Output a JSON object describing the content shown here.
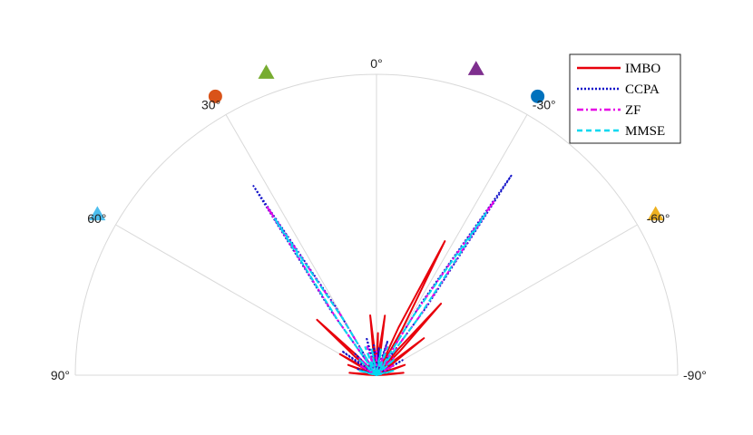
{
  "chart_data": {
    "type": "polar-beampattern",
    "title": "",
    "theta_range_deg": [
      -90,
      90
    ],
    "r_range": [
      0,
      1
    ],
    "grid": true,
    "theta_ticks": [
      {
        "deg": 90,
        "label": "90°"
      },
      {
        "deg": 60,
        "label": "60°"
      },
      {
        "deg": 30,
        "label": "30°"
      },
      {
        "deg": 0,
        "label": "0°"
      },
      {
        "deg": -30,
        "label": "-30°"
      },
      {
        "deg": -60,
        "label": "-60°"
      },
      {
        "deg": -90,
        "label": "-90°"
      }
    ],
    "legend": {
      "position": "top-right",
      "entries": [
        "IMBO",
        "CCPA",
        "ZF",
        "MMSE"
      ]
    },
    "series": [
      {
        "name": "IMBO",
        "color": "#e8000b",
        "style": "solid",
        "lobes": [
          [
            -27,
            0.5
          ],
          [
            -42,
            0.32
          ],
          [
            -52,
            0.2
          ],
          [
            -8,
            0.2
          ],
          [
            -2,
            0.14
          ],
          [
            6,
            0.2
          ],
          [
            47,
            0.27
          ],
          [
            60,
            0.14
          ],
          [
            -70,
            0.1
          ],
          [
            70,
            0.1
          ],
          [
            85,
            0.09
          ],
          [
            -85,
            0.09
          ]
        ]
      },
      {
        "name": "CCPA",
        "color": "#1010c8",
        "style": "dotted",
        "lobes": [
          [
            -34,
            0.8
          ],
          [
            33,
            0.75
          ],
          [
            -18,
            0.12
          ],
          [
            15,
            0.13
          ],
          [
            45,
            0.1
          ],
          [
            55,
            0.14
          ],
          [
            -60,
            0.1
          ],
          [
            -5,
            0.09
          ],
          [
            5,
            0.1
          ],
          [
            72,
            0.07
          ]
        ]
      },
      {
        "name": "ZF",
        "color": "#e600e6",
        "style": "dashdot",
        "lobes": [
          [
            -34,
            0.7
          ],
          [
            33,
            0.67
          ],
          [
            -20,
            0.1
          ],
          [
            18,
            0.1
          ],
          [
            -45,
            0.08
          ],
          [
            45,
            0.08
          ],
          [
            -60,
            0.07
          ],
          [
            60,
            0.06
          ],
          [
            0,
            0.08
          ]
        ]
      },
      {
        "name": "MMSE",
        "color": "#00d8f0",
        "style": "dashed",
        "lobes": [
          [
            -34,
            0.65
          ],
          [
            33,
            0.62
          ],
          [
            -22,
            0.1
          ],
          [
            22,
            0.1
          ],
          [
            -48,
            0.08
          ],
          [
            48,
            0.08
          ],
          [
            -10,
            0.09
          ],
          [
            10,
            0.09
          ],
          [
            -75,
            0.06
          ],
          [
            75,
            0.06
          ]
        ]
      }
    ],
    "markers": [
      {
        "deg": 60,
        "shape": "triangle",
        "color": "#4dbeee"
      },
      {
        "deg": 30,
        "shape": "circle",
        "color": "#d95319"
      },
      {
        "deg": 20,
        "shape": "triangle",
        "color": "#77ac30"
      },
      {
        "deg": -18,
        "shape": "triangle",
        "color": "#7e2f8e"
      },
      {
        "deg": -30,
        "shape": "circle",
        "color": "#0072bd"
      },
      {
        "deg": -60,
        "shape": "triangle",
        "color": "#edb120"
      }
    ]
  }
}
